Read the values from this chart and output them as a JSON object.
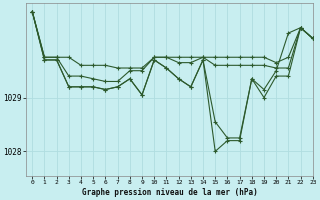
{
  "title": "Graphe pression niveau de la mer (hPa)",
  "background_color": "#c8eef0",
  "grid_color": "#b0dde0",
  "line_color": "#2d5a2d",
  "xlim": [
    -0.5,
    23
  ],
  "ylim": [
    1027.55,
    1030.75
  ],
  "yticks": [
    1028,
    1029
  ],
  "xticks": [
    0,
    1,
    2,
    3,
    4,
    5,
    6,
    7,
    8,
    9,
    10,
    11,
    12,
    13,
    14,
    15,
    16,
    17,
    18,
    19,
    20,
    21,
    22,
    23
  ],
  "series": [
    [
      1030.6,
      1029.75,
      1029.75,
      1029.75,
      1029.6,
      1029.6,
      1029.6,
      1029.55,
      1029.55,
      1029.55,
      1029.75,
      1029.75,
      1029.75,
      1029.75,
      1029.75,
      1029.75,
      1029.75,
      1029.75,
      1029.75,
      1029.75,
      1029.65,
      1029.75,
      1030.3,
      1030.1
    ],
    [
      1030.6,
      1029.75,
      1029.75,
      1029.4,
      1029.4,
      1029.35,
      1029.3,
      1029.3,
      1029.5,
      1029.5,
      1029.75,
      1029.75,
      1029.65,
      1029.65,
      1029.75,
      1029.6,
      1029.6,
      1029.6,
      1029.6,
      1029.6,
      1029.55,
      1029.55,
      1030.3,
      1030.1
    ],
    [
      1030.6,
      1029.7,
      1029.7,
      1029.2,
      1029.2,
      1029.2,
      1029.15,
      1029.2,
      1029.35,
      1029.05,
      1029.7,
      1029.55,
      1029.35,
      1029.2,
      1029.7,
      1028.55,
      1028.25,
      1028.25,
      1029.35,
      1029.15,
      1029.5,
      1030.2,
      1030.3,
      1030.1
    ],
    [
      1030.6,
      1029.7,
      1029.7,
      1029.2,
      1029.2,
      1029.2,
      1029.15,
      1029.2,
      1029.35,
      1029.05,
      1029.7,
      1029.55,
      1029.35,
      1029.2,
      1029.7,
      1028.0,
      1028.2,
      1028.2,
      1029.35,
      1029.0,
      1029.4,
      1029.4,
      1030.3,
      1030.1
    ]
  ]
}
